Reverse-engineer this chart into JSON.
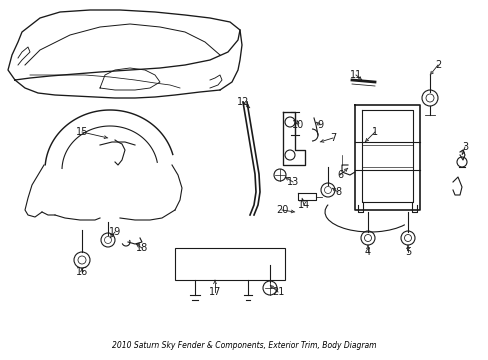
{
  "title": "2010 Saturn Sky Fender & Components, Exterior Trim, Body Diagram",
  "bg_color": "#ffffff",
  "line_color": "#1a1a1a",
  "fig_width": 4.89,
  "fig_height": 3.6,
  "dpi": 100
}
